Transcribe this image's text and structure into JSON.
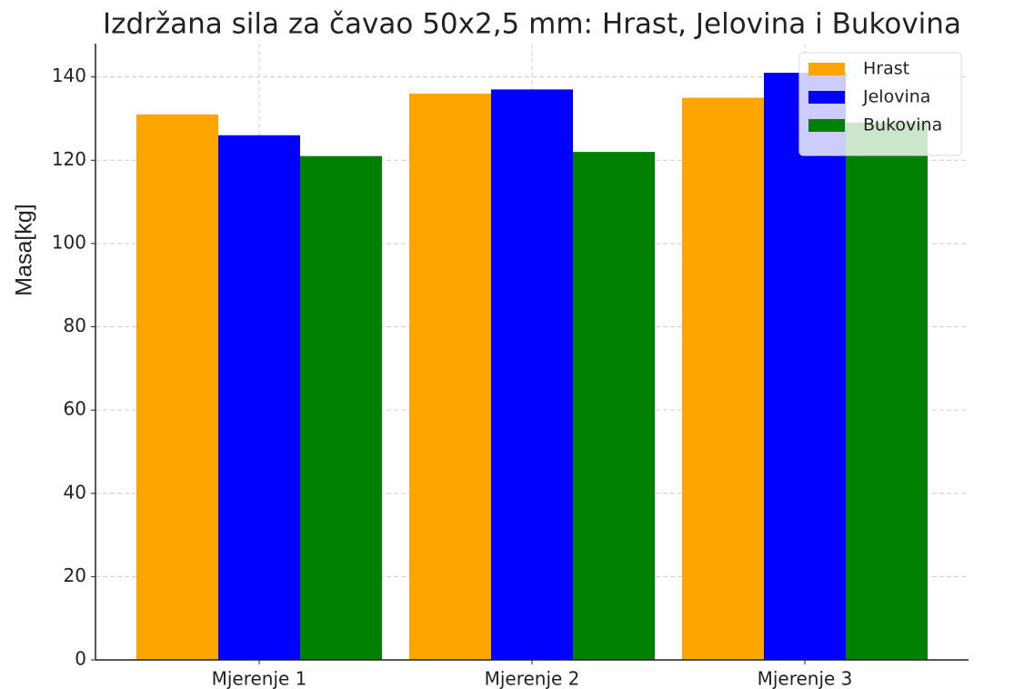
{
  "chart_data": {
    "type": "bar",
    "title": "Izdržana sila za čavao 50x2,5 mm: Hrast, Jelovina i Bukovina",
    "ylabel": "Masa[kg]",
    "categories": [
      "Mjerenje 1",
      "Mjerenje 2",
      "Mjerenje 3"
    ],
    "series": [
      {
        "name": "Hrast",
        "color": "#ffa500",
        "values": [
          131,
          136,
          135
        ]
      },
      {
        "name": "Jelovina",
        "color": "#0000ff",
        "values": [
          126,
          137,
          141
        ]
      },
      {
        "name": "Bukovina",
        "color": "#008000",
        "values": [
          121,
          122,
          129
        ]
      }
    ],
    "ylim": [
      0,
      148
    ],
    "yticks": [
      0,
      20,
      40,
      60,
      80,
      100,
      120,
      140
    ],
    "grid": true,
    "legend": "upper right"
  }
}
